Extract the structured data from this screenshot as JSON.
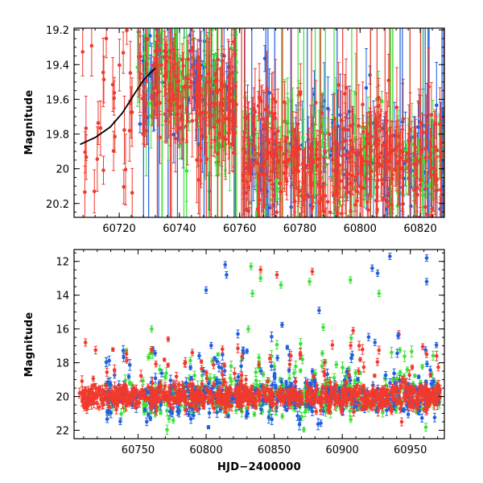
{
  "chart_data": [
    {
      "type": "scatter",
      "panel": "top",
      "title": "",
      "xlabel": "",
      "ylabel": "Magnitude",
      "xlim": [
        60705,
        60828
      ],
      "ylim": [
        20.28,
        19.19
      ],
      "y_inverted": true,
      "x_ticks": [
        "60720",
        "60740",
        "60760",
        "60780",
        "60800",
        "60820"
      ],
      "y_ticks": [
        "19.2",
        "19.4",
        "19.6",
        "19.8",
        "20",
        "20.2"
      ],
      "series": [
        {
          "name": "blue band",
          "color": "#1f5fe0"
        },
        {
          "name": "green band",
          "color": "#3ee03a"
        },
        {
          "name": "red band",
          "color": "#f03a2e"
        }
      ],
      "model_curve": {
        "color": "#000000",
        "points": [
          [
            60707,
            19.86
          ],
          [
            60712,
            19.82
          ],
          [
            60717,
            19.76
          ],
          [
            60721,
            19.68
          ],
          [
            60725,
            19.57
          ],
          [
            60728,
            19.49
          ],
          [
            60732,
            19.42
          ]
        ]
      },
      "dense_data_ranges": [
        [
          60726,
          60760
        ],
        [
          60761,
          60828
        ]
      ],
      "typical_magnitude": 19.75
    },
    {
      "type": "scatter",
      "panel": "bottom",
      "title": "",
      "xlabel": "HJD−2400000",
      "ylabel": "Magnitude",
      "xlim": [
        60703,
        60975
      ],
      "ylim": [
        22.5,
        11.3
      ],
      "y_inverted": true,
      "x_ticks": [
        "60750",
        "60800",
        "60850",
        "60900",
        "60950"
      ],
      "y_ticks": [
        "12",
        "14",
        "16",
        "18",
        "20",
        "22"
      ],
      "series": [
        {
          "name": "blue band",
          "color": "#1f5fe0"
        },
        {
          "name": "green band",
          "color": "#3ee03a"
        },
        {
          "name": "red band",
          "color": "#f03a2e"
        }
      ],
      "typical_magnitude": 20.0,
      "bright_outliers": [
        {
          "x": 60800,
          "y": 13.7,
          "band": "blue"
        },
        {
          "x": 60814,
          "y": 12.2,
          "band": "blue"
        },
        {
          "x": 60815,
          "y": 12.8,
          "band": "blue"
        },
        {
          "x": 60833,
          "y": 12.3,
          "band": "green"
        },
        {
          "x": 60840,
          "y": 12.5,
          "band": "red"
        },
        {
          "x": 60852,
          "y": 12.8,
          "band": "red"
        },
        {
          "x": 60855,
          "y": 13.4,
          "band": "green"
        },
        {
          "x": 60840,
          "y": 13.0,
          "band": "green"
        },
        {
          "x": 60834,
          "y": 13.9,
          "band": "green"
        },
        {
          "x": 60878,
          "y": 12.6,
          "band": "red"
        },
        {
          "x": 60876,
          "y": 13.2,
          "band": "green"
        },
        {
          "x": 60906,
          "y": 13.1,
          "band": "green"
        },
        {
          "x": 60922,
          "y": 12.4,
          "band": "blue"
        },
        {
          "x": 60926,
          "y": 12.7,
          "band": "blue"
        },
        {
          "x": 60927,
          "y": 13.9,
          "band": "green"
        },
        {
          "x": 60935,
          "y": 11.7,
          "band": "blue"
        },
        {
          "x": 60962,
          "y": 11.8,
          "band": "blue"
        },
        {
          "x": 60962,
          "y": 13.2,
          "band": "blue"
        },
        {
          "x": 60760,
          "y": 16.0,
          "band": "green"
        },
        {
          "x": 60831,
          "y": 16.0,
          "band": "green"
        },
        {
          "x": 60883,
          "y": 14.9,
          "band": "blue"
        },
        {
          "x": 60886,
          "y": 15.9,
          "band": "green"
        },
        {
          "x": 60908,
          "y": 16.1,
          "band": "red"
        },
        {
          "x": 60924,
          "y": 16.8,
          "band": "blue"
        },
        {
          "x": 60941,
          "y": 16.4,
          "band": "blue"
        },
        {
          "x": 60812,
          "y": 17.2,
          "band": "red"
        },
        {
          "x": 60887,
          "y": 18.0,
          "band": "red"
        },
        {
          "x": 60962,
          "y": 17.5,
          "band": "red"
        }
      ]
    }
  ]
}
